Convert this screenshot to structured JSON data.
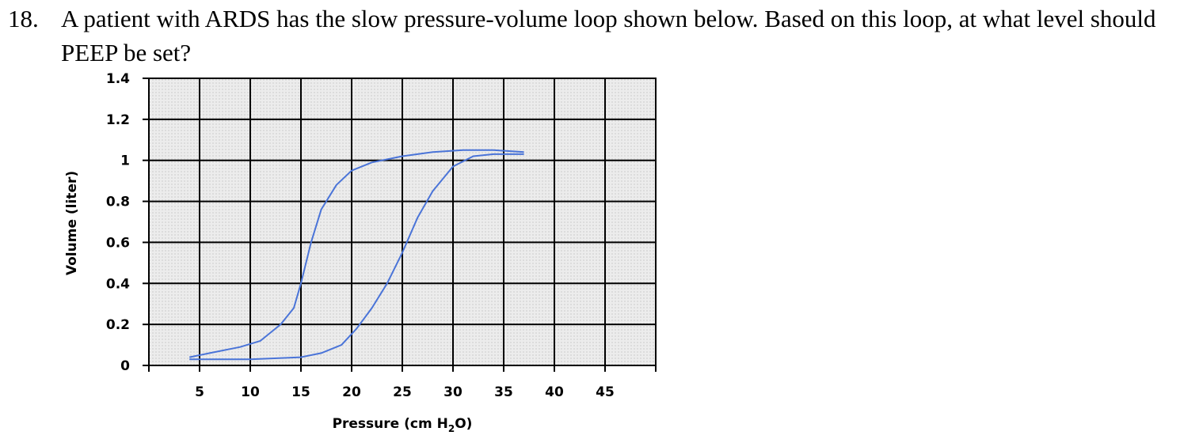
{
  "question": {
    "number": "18.",
    "text": "A patient with ARDS has the slow pressure-volume loop shown below. Based on this loop, at what level should PEEP be set?"
  },
  "chart_data": {
    "type": "line",
    "xlabel_main": "Pressure (cm H",
    "xlabel_sub": "2",
    "xlabel_end": "O)",
    "ylabel": "Volume (liter)",
    "xlim": [
      0,
      50
    ],
    "ylim": [
      0,
      1.4
    ],
    "x_ticks": [
      "5",
      "10",
      "15",
      "20",
      "25",
      "30",
      "35",
      "40",
      "45"
    ],
    "y_ticks": [
      "0",
      "0.2",
      "0.4",
      "0.6",
      "0.8",
      "1",
      "1.2",
      "1.4"
    ],
    "grid": true,
    "line_color": "#4a74d8",
    "series": [
      {
        "points": [
          [
            4,
            0.04
          ],
          [
            6,
            0.06
          ],
          [
            9,
            0.09
          ],
          [
            11,
            0.12
          ],
          [
            13,
            0.2
          ],
          [
            14.3,
            0.28
          ],
          [
            15,
            0.4
          ],
          [
            16,
            0.6
          ],
          [
            17,
            0.76
          ],
          [
            18.5,
            0.88
          ],
          [
            20,
            0.95
          ],
          [
            22,
            0.99
          ],
          [
            25,
            1.02
          ],
          [
            28,
            1.04
          ],
          [
            31,
            1.05
          ],
          [
            34,
            1.05
          ],
          [
            37,
            1.04
          ]
        ]
      },
      {
        "points": [
          [
            37,
            1.03
          ],
          [
            34,
            1.03
          ],
          [
            32,
            1.02
          ],
          [
            30,
            0.97
          ],
          [
            28,
            0.85
          ],
          [
            26.5,
            0.72
          ],
          [
            25,
            0.55
          ],
          [
            23.5,
            0.4
          ],
          [
            22,
            0.28
          ],
          [
            20.5,
            0.18
          ],
          [
            19,
            0.1
          ],
          [
            17,
            0.06
          ],
          [
            15,
            0.04
          ],
          [
            10,
            0.03
          ],
          [
            4,
            0.03
          ]
        ]
      }
    ]
  }
}
